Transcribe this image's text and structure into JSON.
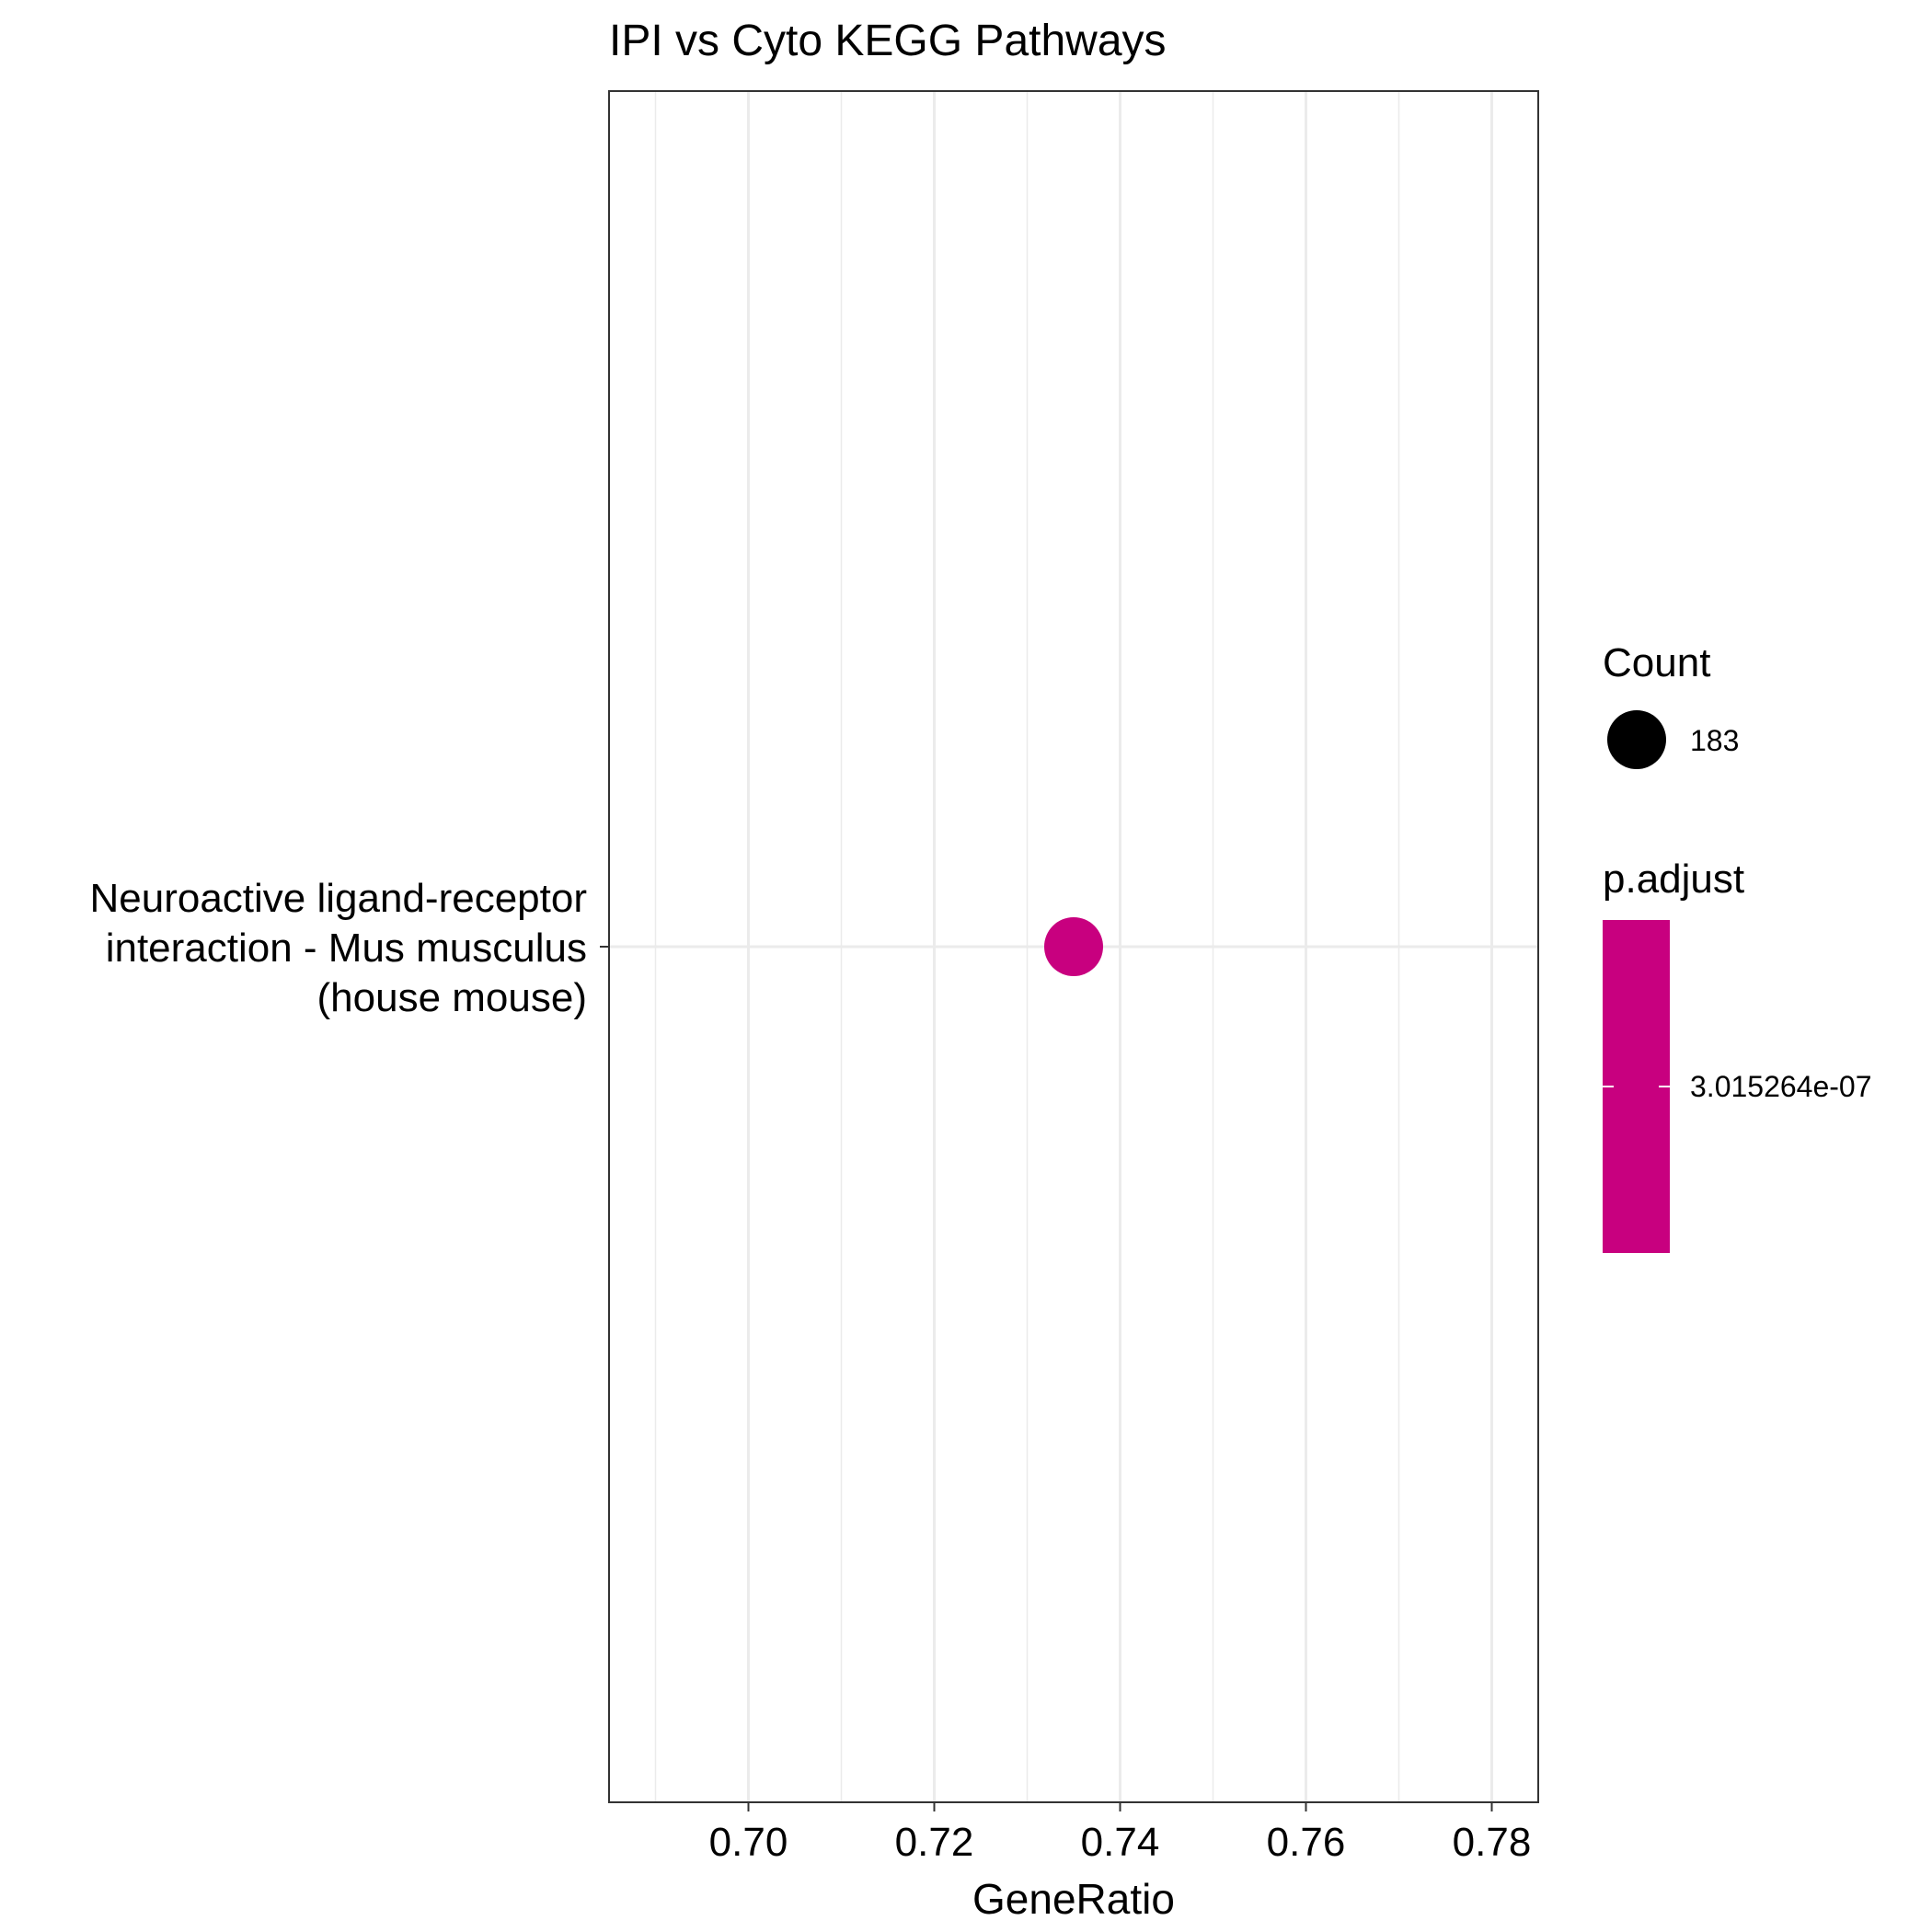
{
  "chart_data": {
    "type": "scatter",
    "title": "IPI vs Cyto KEGG Pathways",
    "xlabel": "GeneRatio",
    "ylabel": "",
    "xlim": [
      0.685,
      0.785
    ],
    "x_ticks": [
      0.7,
      0.72,
      0.74,
      0.76,
      0.78
    ],
    "x_tick_labels": [
      "0.70",
      "0.72",
      "0.74",
      "0.76",
      "0.78"
    ],
    "categories": [
      [
        "Neuroactive ligand-receptor",
        "interaction - Mus musculus",
        "(house mouse)"
      ]
    ],
    "points": [
      {
        "category_index": 0,
        "x": 0.735,
        "count": 183,
        "p_adjust": 3.015264e-07,
        "color": "#C8007F"
      }
    ],
    "grid": true,
    "legend_placement": "right",
    "legends": {
      "size": {
        "title": "Count",
        "entries": [
          {
            "label": "183",
            "value": 183
          }
        ]
      },
      "color": {
        "title": "p.adjust",
        "label": "3.015264e-07",
        "color": "#C8007F"
      }
    }
  }
}
